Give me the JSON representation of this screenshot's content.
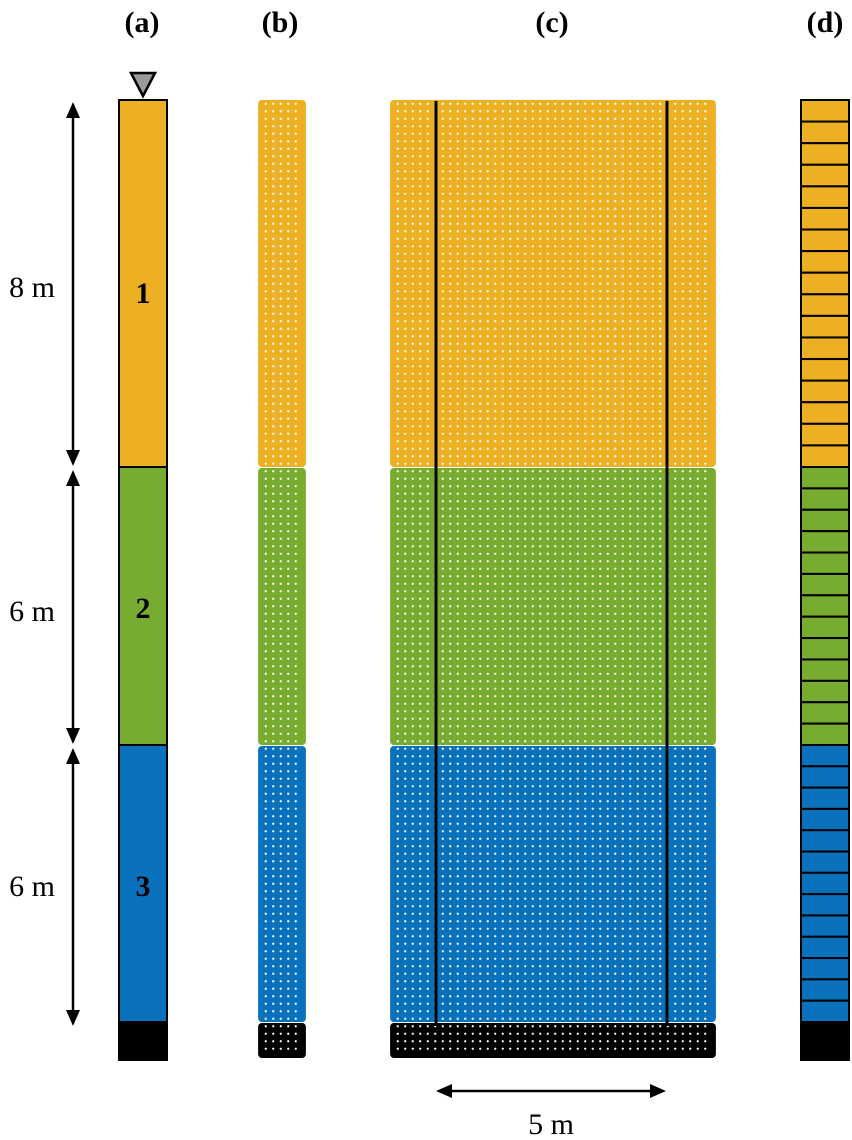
{
  "panels": [
    "(a)",
    "(b)",
    "(c)",
    "(d)"
  ],
  "layers": [
    {
      "number": "1",
      "thickness_label": "8 m",
      "thickness_m": 8,
      "color": "#EDB022"
    },
    {
      "number": "2",
      "thickness_label": "6 m",
      "thickness_m": 6,
      "color": "#77AC30"
    },
    {
      "number": "3",
      "thickness_label": "6 m",
      "thickness_m": 6,
      "color": "#0A72BD"
    }
  ],
  "base_color": "#000000",
  "width_label": "5 m",
  "water_table_symbol": "inverted-triangle"
}
